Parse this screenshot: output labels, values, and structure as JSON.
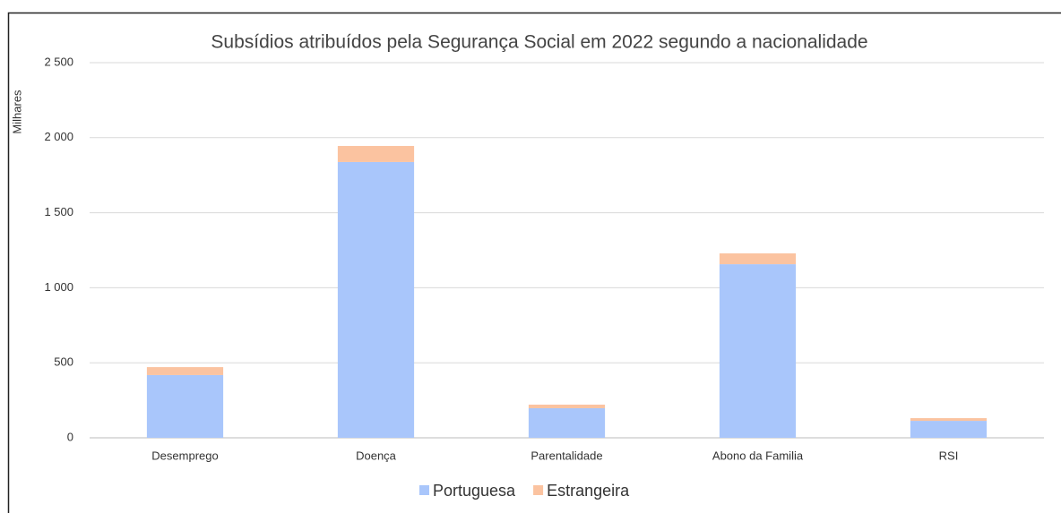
{
  "chart_data": {
    "type": "stacked_bar",
    "title": "Subsídios atribuídos pela Segurança Social em 2022 segundo a nacionalidade",
    "y_label": "Milhares",
    "categories": [
      "Desemprego",
      "Doença",
      "Parentalidade",
      "Abono da Familia",
      "RSI"
    ],
    "series": [
      {
        "name": "Portuguesa",
        "color": "#a9c6fb",
        "values": [
          418,
          1838,
          197,
          1157,
          113
        ]
      },
      {
        "name": "Estrangeira",
        "color": "#fbc3a0",
        "values": [
          53,
          107,
          24,
          72,
          18
        ]
      }
    ],
    "ylim": [
      0,
      2500
    ],
    "yticks": [
      0,
      500,
      {
        "value": 1000,
        "label": "1 000"
      },
      {
        "value": 1500,
        "label": "1 500"
      },
      {
        "value": 2000,
        "label": "2 000"
      },
      {
        "value": 2500,
        "label": "2 500"
      }
    ],
    "grid": true,
    "legend": "bottom"
  }
}
